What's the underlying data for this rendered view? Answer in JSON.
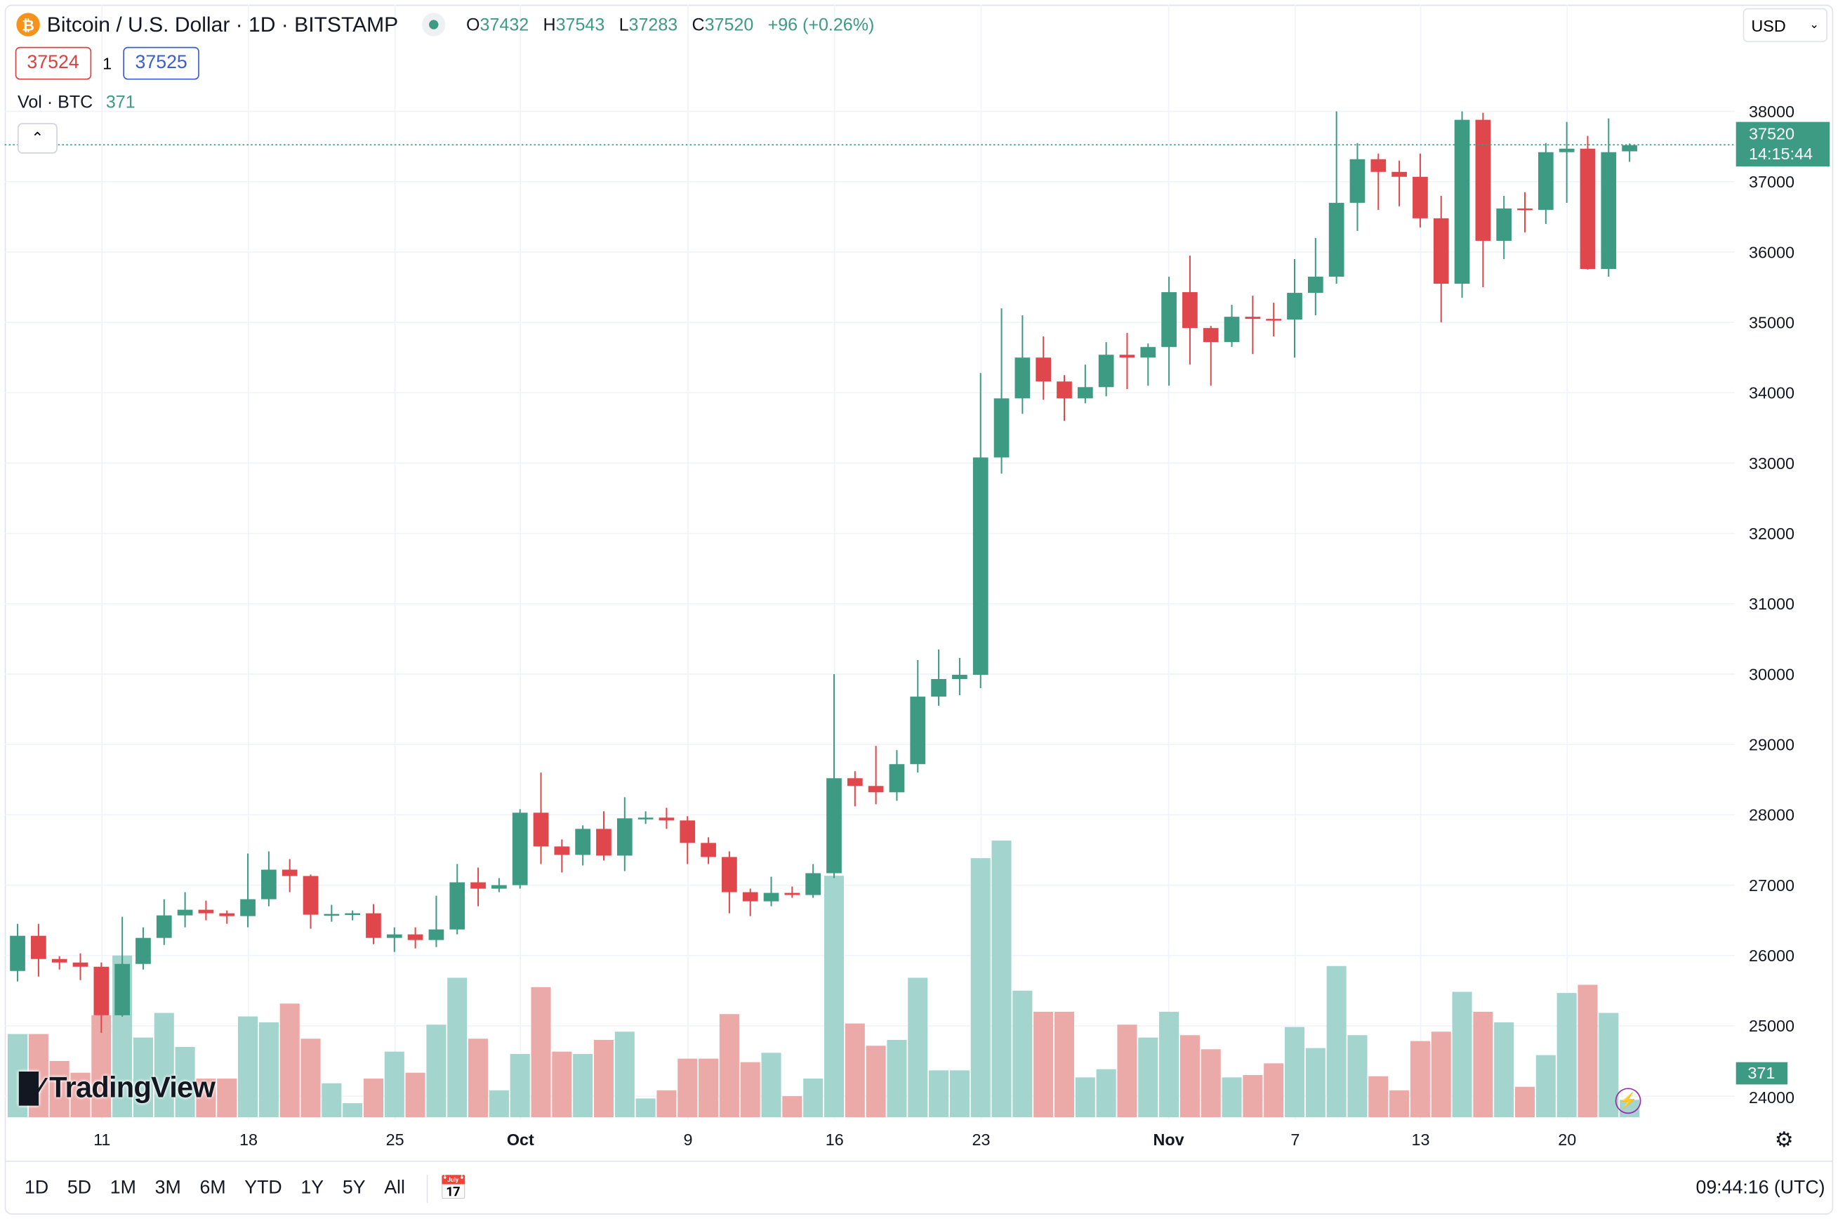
{
  "header": {
    "symbol_icon": "bitcoin-icon",
    "title": "Bitcoin / U.S. Dollar · 1D · BITSTAMP",
    "status_color": "#3d9a83",
    "o_label": "O",
    "o": "37432",
    "h_label": "H",
    "h": "37543",
    "l_label": "L",
    "l": "37283",
    "c_label": "C",
    "c": "37520",
    "change": "+96 (+0.26%)"
  },
  "bid": "37524",
  "spread": "1",
  "ask": "37525",
  "volume_legend": {
    "label": "Vol · BTC",
    "value": "371"
  },
  "currency": "USD",
  "last_price": {
    "price": "37520",
    "countdown": "14:15:44"
  },
  "volume_label": "371",
  "price_axis": [
    "38000",
    "37000",
    "36000",
    "35000",
    "34000",
    "33000",
    "32000",
    "31000",
    "30000",
    "29000",
    "28000",
    "27000",
    "26000",
    "25000",
    "24000"
  ],
  "time_axis": [
    {
      "label": "11",
      "bold": false
    },
    {
      "label": "18",
      "bold": false
    },
    {
      "label": "25",
      "bold": false
    },
    {
      "label": "Oct",
      "bold": true
    },
    {
      "label": "9",
      "bold": false
    },
    {
      "label": "16",
      "bold": false
    },
    {
      "label": "23",
      "bold": false
    },
    {
      "label": "Nov",
      "bold": true
    },
    {
      "label": "7",
      "bold": false
    },
    {
      "label": "13",
      "bold": false
    },
    {
      "label": "20",
      "bold": false
    }
  ],
  "logo": "TradingView",
  "ranges": [
    "1D",
    "5D",
    "1M",
    "3M",
    "6M",
    "YTD",
    "1Y",
    "5Y",
    "All"
  ],
  "clock": "09:44:16 (UTC)",
  "colors": {
    "up": "#3d9a83",
    "down": "#e0474c",
    "vol_up": "#a3d4cd",
    "vol_down": "#eba9a8",
    "bid": "#d9423f",
    "ask": "#3a5fcd"
  },
  "chart_data": {
    "type": "candlestick",
    "x_unit": "day",
    "ylim": [
      23700,
      38500
    ],
    "grid": true,
    "columns": [
      "date",
      "open",
      "high",
      "low",
      "close",
      "volume"
    ],
    "candles": [
      [
        "Sep 7",
        25780,
        26450,
        25630,
        26280,
        1775
      ],
      [
        "Sep 8",
        26280,
        26450,
        25700,
        25950,
        1775
      ],
      [
        "Sep 9",
        25950,
        25990,
        25800,
        25900,
        1200
      ],
      [
        "Sep 10",
        25900,
        26030,
        25650,
        25840,
        950
      ],
      [
        "Sep 11",
        25840,
        25900,
        24900,
        25150,
        2175
      ],
      [
        "Sep 12",
        25150,
        26550,
        25130,
        25880,
        3450
      ],
      [
        "Sep 13",
        25880,
        26400,
        25800,
        26250,
        1700
      ],
      [
        "Sep 14",
        26250,
        26800,
        26150,
        26570,
        2225
      ],
      [
        "Sep 15",
        26570,
        26900,
        26400,
        26650,
        1500
      ],
      [
        "Sep 16",
        26650,
        26780,
        26500,
        26600,
        825
      ],
      [
        "Sep 17",
        26600,
        26640,
        26450,
        26560,
        825
      ],
      [
        "Sep 18",
        26560,
        27450,
        26400,
        26800,
        2150
      ],
      [
        "Sep 19",
        26800,
        27480,
        26700,
        27220,
        2025
      ],
      [
        "Sep 20",
        27220,
        27370,
        26900,
        27130,
        2425
      ],
      [
        "Sep 21",
        27130,
        27150,
        26380,
        26580,
        1675
      ],
      [
        "Sep 22",
        26580,
        26720,
        26480,
        26590,
        725
      ],
      [
        "Sep 23",
        26590,
        26640,
        26500,
        26600,
        300
      ],
      [
        "Sep 24",
        26600,
        26730,
        26160,
        26250,
        825
      ],
      [
        "Sep 25",
        26250,
        26400,
        26050,
        26300,
        1400
      ],
      [
        "Sep 26",
        26300,
        26400,
        26100,
        26220,
        950
      ],
      [
        "Sep 27",
        26220,
        26850,
        26120,
        26370,
        1975
      ],
      [
        "Sep 28",
        26370,
        27300,
        26300,
        27040,
        2975
      ],
      [
        "Sep 29",
        27040,
        27250,
        26700,
        26950,
        1675
      ],
      [
        "Sep 30",
        26950,
        27100,
        26900,
        27000,
        575
      ],
      [
        "Oct 1",
        27000,
        28080,
        26950,
        28030,
        1350
      ],
      [
        "Oct 2",
        28030,
        28600,
        27300,
        27550,
        2775
      ],
      [
        "Oct 3",
        27550,
        27650,
        27180,
        27430,
        1400
      ],
      [
        "Oct 4",
        27430,
        27850,
        27280,
        27800,
        1350
      ],
      [
        "Oct 5",
        27800,
        28050,
        27350,
        27420,
        1650
      ],
      [
        "Oct 6",
        27420,
        28250,
        27200,
        27950,
        1825
      ],
      [
        "Oct 7",
        27950,
        28050,
        27870,
        27960,
        400
      ],
      [
        "Oct 8",
        27960,
        28100,
        27800,
        27920,
        575
      ],
      [
        "Oct 9",
        27920,
        27980,
        27300,
        27600,
        1250
      ],
      [
        "Oct 10",
        27600,
        27680,
        27300,
        27400,
        1250
      ],
      [
        "Oct 11",
        27400,
        27480,
        26600,
        26900,
        2200
      ],
      [
        "Oct 12",
        26900,
        26950,
        26560,
        26770,
        1175
      ],
      [
        "Oct 13",
        26770,
        27120,
        26700,
        26890,
        1375
      ],
      [
        "Oct 14",
        26890,
        26980,
        26820,
        26860,
        450
      ],
      [
        "Oct 15",
        26860,
        27300,
        26820,
        27170,
        825
      ],
      [
        "Oct 16",
        27170,
        30000,
        27100,
        28520,
        5150
      ],
      [
        "Oct 17",
        28520,
        28620,
        28120,
        28410,
        2000
      ],
      [
        "Oct 18",
        28410,
        28980,
        28150,
        28320,
        1525
      ],
      [
        "Oct 19",
        28320,
        28920,
        28200,
        28720,
        1650
      ],
      [
        "Oct 20",
        28720,
        30200,
        28600,
        29680,
        2975
      ],
      [
        "Oct 21",
        29680,
        30350,
        29550,
        29930,
        1000
      ],
      [
        "Oct 22",
        29930,
        30230,
        29700,
        29990,
        1000
      ],
      [
        "Oct 23",
        29990,
        34280,
        29800,
        33080,
        5525
      ],
      [
        "Oct 24",
        33080,
        35200,
        32850,
        33920,
        5900
      ],
      [
        "Oct 25",
        33920,
        35100,
        33700,
        34500,
        2700
      ],
      [
        "Oct 26",
        34500,
        34800,
        33900,
        34160,
        2250
      ],
      [
        "Oct 27",
        34160,
        34250,
        33600,
        33920,
        2250
      ],
      [
        "Oct 28",
        33920,
        34400,
        33850,
        34080,
        850
      ],
      [
        "Oct 29",
        34080,
        34720,
        33950,
        34540,
        1025
      ],
      [
        "Oct 30",
        34540,
        34850,
        34050,
        34500,
        1975
      ],
      [
        "Oct 31",
        34500,
        34700,
        34100,
        34650,
        1700
      ],
      [
        "Nov 1",
        34650,
        35650,
        34100,
        35430,
        2250
      ],
      [
        "Nov 2",
        35430,
        35950,
        34400,
        34920,
        1750
      ],
      [
        "Nov 3",
        34920,
        34950,
        34100,
        34720,
        1450
      ],
      [
        "Nov 4",
        34720,
        35250,
        34650,
        35080,
        850
      ],
      [
        "Nov 5",
        35080,
        35380,
        34550,
        35050,
        900
      ],
      [
        "Nov 6",
        35050,
        35280,
        34800,
        35040,
        1150
      ],
      [
        "Nov 7",
        35040,
        35900,
        34500,
        35420,
        1925
      ],
      [
        "Nov 8",
        35420,
        36200,
        35100,
        35650,
        1475
      ],
      [
        "Nov 9",
        35650,
        38000,
        35550,
        36700,
        3225
      ],
      [
        "Nov 10",
        36700,
        37550,
        36300,
        37320,
        1750
      ],
      [
        "Nov 11",
        37320,
        37400,
        36600,
        37140,
        875
      ],
      [
        "Nov 12",
        37140,
        37300,
        36650,
        37070,
        575
      ],
      [
        "Nov 13",
        37070,
        37400,
        36350,
        36480,
        1625
      ],
      [
        "Nov 14",
        36480,
        36800,
        35000,
        35550,
        1825
      ],
      [
        "Nov 15",
        35550,
        38000,
        35350,
        37880,
        2675
      ],
      [
        "Nov 16",
        37880,
        37980,
        35500,
        36160,
        2250
      ],
      [
        "Nov 17",
        36160,
        36800,
        35900,
        36620,
        2025
      ],
      [
        "Nov 18",
        36620,
        36850,
        36280,
        36600,
        650
      ],
      [
        "Nov 19",
        36600,
        37550,
        36400,
        37420,
        1325
      ],
      [
        "Nov 20",
        37420,
        37850,
        36700,
        37470,
        2650
      ],
      [
        "Nov 21",
        37470,
        37650,
        35750,
        35760,
        2825
      ],
      [
        "Nov 22",
        35760,
        37900,
        35650,
        37420,
        2225
      ],
      [
        "Nov 23",
        37432,
        37543,
        37283,
        37520,
        371
      ]
    ]
  }
}
